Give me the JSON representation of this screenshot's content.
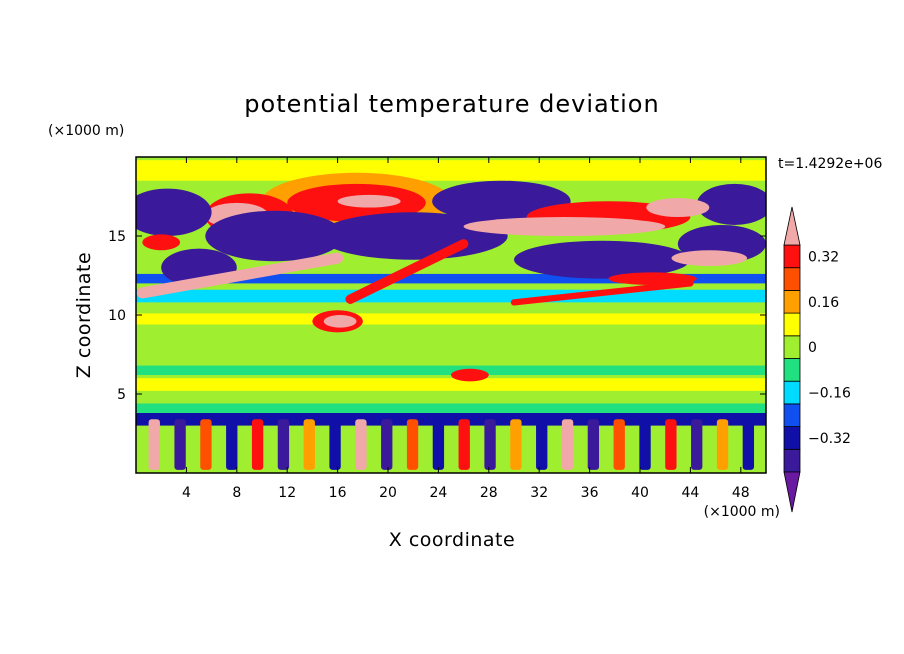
{
  "chart_data": {
    "type": "heatmap",
    "title": "potential temperature deviation",
    "xlabel": "X coordinate",
    "ylabel": "Z coordinate",
    "x_unit": "(×1000 m)",
    "y_unit": "(×1000 m)",
    "time_label": "t=1.4292e+06",
    "xlim": [
      0,
      50
    ],
    "ylim": [
      0,
      20
    ],
    "x_ticks": [
      4,
      8,
      12,
      16,
      20,
      24,
      28,
      32,
      36,
      40,
      44,
      48
    ],
    "x_tick_labels": [
      "4",
      "8",
      "12",
      "16",
      "20",
      "24",
      "28",
      "32",
      "36",
      "40",
      "44",
      "48"
    ],
    "y_ticks": [
      5,
      10,
      15
    ],
    "y_tick_labels": [
      "5",
      "10",
      "15"
    ],
    "colorbar": {
      "levels": [
        -0.4,
        -0.32,
        -0.24,
        -0.16,
        -0.08,
        0,
        0.08,
        0.16,
        0.24,
        0.32,
        0.4
      ],
      "labels": [
        {
          "value": 0.32,
          "text": "0.32"
        },
        {
          "value": 0.16,
          "text": "0.16"
        },
        {
          "value": 0,
          "text": "0"
        },
        {
          "value": -0.16,
          "text": "−0.16"
        },
        {
          "value": -0.32,
          "text": "−0.32"
        }
      ],
      "colors": [
        "#6a1aa0",
        "#3a1a9a",
        "#1010a8",
        "#1050f0",
        "#00dcff",
        "#20e080",
        "#a0ee30",
        "#ffff00",
        "#ffa000",
        "#ff5000",
        "#ff1010",
        "#f0a8a8"
      ]
    },
    "field_features": [
      {
        "kind": "background",
        "value": 0.0
      },
      {
        "kind": "band",
        "z": [
          18.5,
          19.8
        ],
        "value": 0.08
      },
      {
        "kind": "band",
        "z": [
          12.0,
          12.6
        ],
        "value": -0.24
      },
      {
        "kind": "band",
        "z": [
          10.8,
          11.6
        ],
        "value": -0.16
      },
      {
        "kind": "band",
        "z": [
          9.4,
          10.1
        ],
        "value": 0.08
      },
      {
        "kind": "band",
        "z": [
          6.2,
          6.8
        ],
        "value": -0.08
      },
      {
        "kind": "band",
        "z": [
          5.2,
          6.0
        ],
        "value": 0.08
      },
      {
        "kind": "band",
        "z": [
          3.0,
          3.8
        ],
        "value": -0.32
      },
      {
        "kind": "band",
        "z": [
          3.8,
          4.4
        ],
        "value": -0.08
      },
      {
        "kind": "blob",
        "x": 17.5,
        "z": 17.2,
        "rx": 7.5,
        "rz": 1.8,
        "value": 0.16
      },
      {
        "kind": "blob",
        "x": 17.5,
        "z": 17.1,
        "rx": 5.5,
        "rz": 1.2,
        "value": 0.32
      },
      {
        "kind": "blob",
        "x": 18.5,
        "z": 17.2,
        "rx": 2.5,
        "rz": 0.4,
        "value": 0.4
      },
      {
        "kind": "blob",
        "x": 9.0,
        "z": 16.3,
        "rx": 3.5,
        "rz": 1.4,
        "value": 0.32
      },
      {
        "kind": "blob",
        "x": 8.0,
        "z": 16.3,
        "rx": 2.5,
        "rz": 0.8,
        "value": 0.4
      },
      {
        "kind": "blob",
        "x": 2.5,
        "z": 16.5,
        "rx": 3.5,
        "rz": 1.5,
        "value": -0.4
      },
      {
        "kind": "blob",
        "x": 11.0,
        "z": 15.0,
        "rx": 5.5,
        "rz": 1.6,
        "value": -0.4
      },
      {
        "kind": "blob",
        "x": 22.0,
        "z": 15.0,
        "rx": 7.5,
        "rz": 1.5,
        "value": -0.4
      },
      {
        "kind": "blob",
        "x": 29.0,
        "z": 17.2,
        "rx": 5.5,
        "rz": 1.3,
        "value": -0.4
      },
      {
        "kind": "blob",
        "x": 47.5,
        "z": 17.0,
        "rx": 3.0,
        "rz": 1.3,
        "value": -0.4
      },
      {
        "kind": "blob",
        "x": 37.5,
        "z": 16.2,
        "rx": 6.5,
        "rz": 1.0,
        "value": 0.32
      },
      {
        "kind": "blob",
        "x": 43.0,
        "z": 16.8,
        "rx": 2.5,
        "rz": 0.6,
        "value": 0.4
      },
      {
        "kind": "blob",
        "x": 34.0,
        "z": 15.6,
        "rx": 8.0,
        "rz": 0.6,
        "value": 0.4
      },
      {
        "kind": "blob",
        "x": 5.0,
        "z": 13.0,
        "rx": 3.0,
        "rz": 1.2,
        "value": -0.4
      },
      {
        "kind": "blob",
        "x": 37.0,
        "z": 13.5,
        "rx": 7.0,
        "rz": 1.2,
        "value": -0.4
      },
      {
        "kind": "blob",
        "x": 46.5,
        "z": 14.5,
        "rx": 3.5,
        "rz": 1.2,
        "value": -0.4
      },
      {
        "kind": "blob",
        "x": 45.5,
        "z": 13.6,
        "rx": 3.0,
        "rz": 0.5,
        "value": 0.4
      },
      {
        "kind": "blob",
        "x": 2.0,
        "z": 14.6,
        "rx": 1.5,
        "rz": 0.5,
        "value": 0.32
      },
      {
        "kind": "blob",
        "x": 16.0,
        "z": 9.6,
        "rx": 2.0,
        "rz": 0.7,
        "value": 0.32
      },
      {
        "kind": "blob",
        "x": 16.2,
        "z": 9.6,
        "rx": 1.3,
        "rz": 0.4,
        "value": 0.4
      },
      {
        "kind": "blob",
        "x": 26.5,
        "z": 6.2,
        "rx": 1.5,
        "rz": 0.4,
        "value": 0.32
      },
      {
        "kind": "blob",
        "x": 41.0,
        "z": 12.3,
        "rx": 3.5,
        "rz": 0.4,
        "value": 0.32
      },
      {
        "kind": "streak",
        "x1": 0.5,
        "z1": 11.4,
        "x2": 16.0,
        "z2": 13.6,
        "w": 0.35,
        "value": 0.4
      },
      {
        "kind": "streak",
        "x1": 17.0,
        "z1": 11.0,
        "x2": 26.0,
        "z2": 14.5,
        "w": 0.3,
        "value": 0.32
      },
      {
        "kind": "streak",
        "x1": 30.0,
        "z1": 10.8,
        "x2": 44.0,
        "z2": 12.0,
        "w": 0.2,
        "value": 0.32
      }
    ]
  }
}
